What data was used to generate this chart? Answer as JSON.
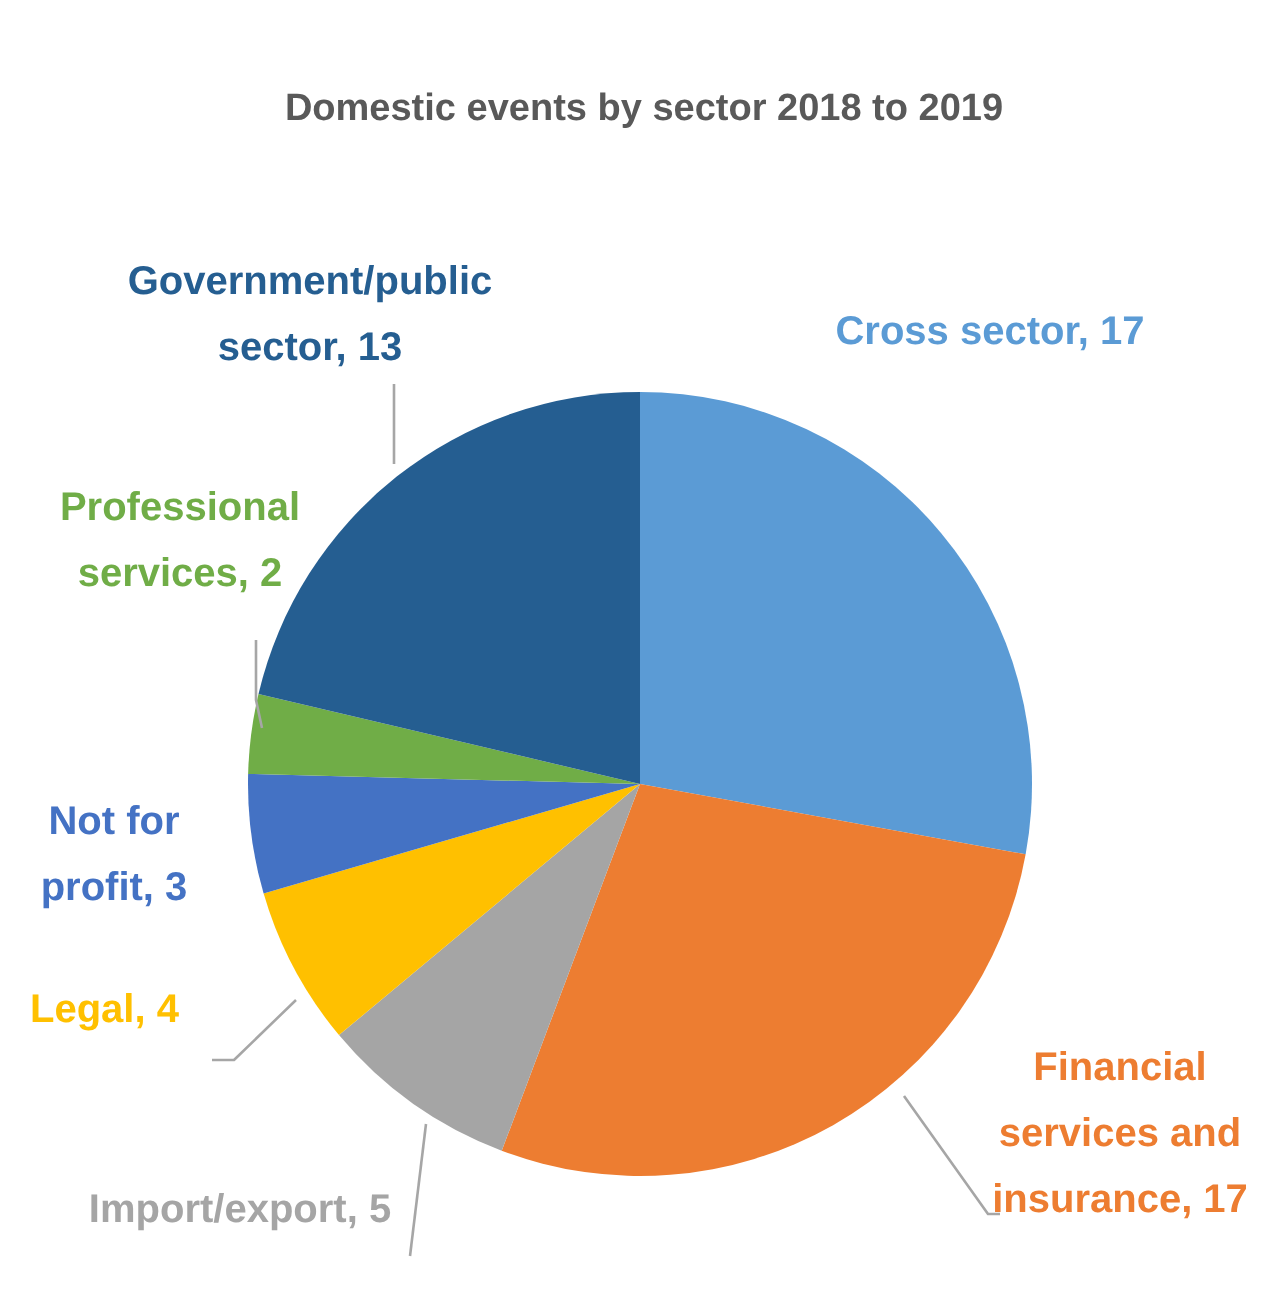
{
  "chart_data": {
    "type": "pie",
    "title": "Domestic events by sector 2018 to 2019",
    "categories": [
      "Cross sector",
      "Financial services and insurance",
      "Import/export",
      "Legal",
      "Not for profit",
      "Professional services",
      "Government/public sector"
    ],
    "values": [
      17,
      17,
      5,
      4,
      3,
      2,
      13
    ],
    "value_labels": [
      ", 17",
      ", 17",
      ", 5",
      ", 4",
      ", 3",
      ", 2",
      ", 13"
    ],
    "colors": [
      "#5b9bd5",
      "#ed7d31",
      "#a5a5a5",
      "#ffc000",
      "#4472c4",
      "#70ad47",
      "#255e91"
    ]
  }
}
